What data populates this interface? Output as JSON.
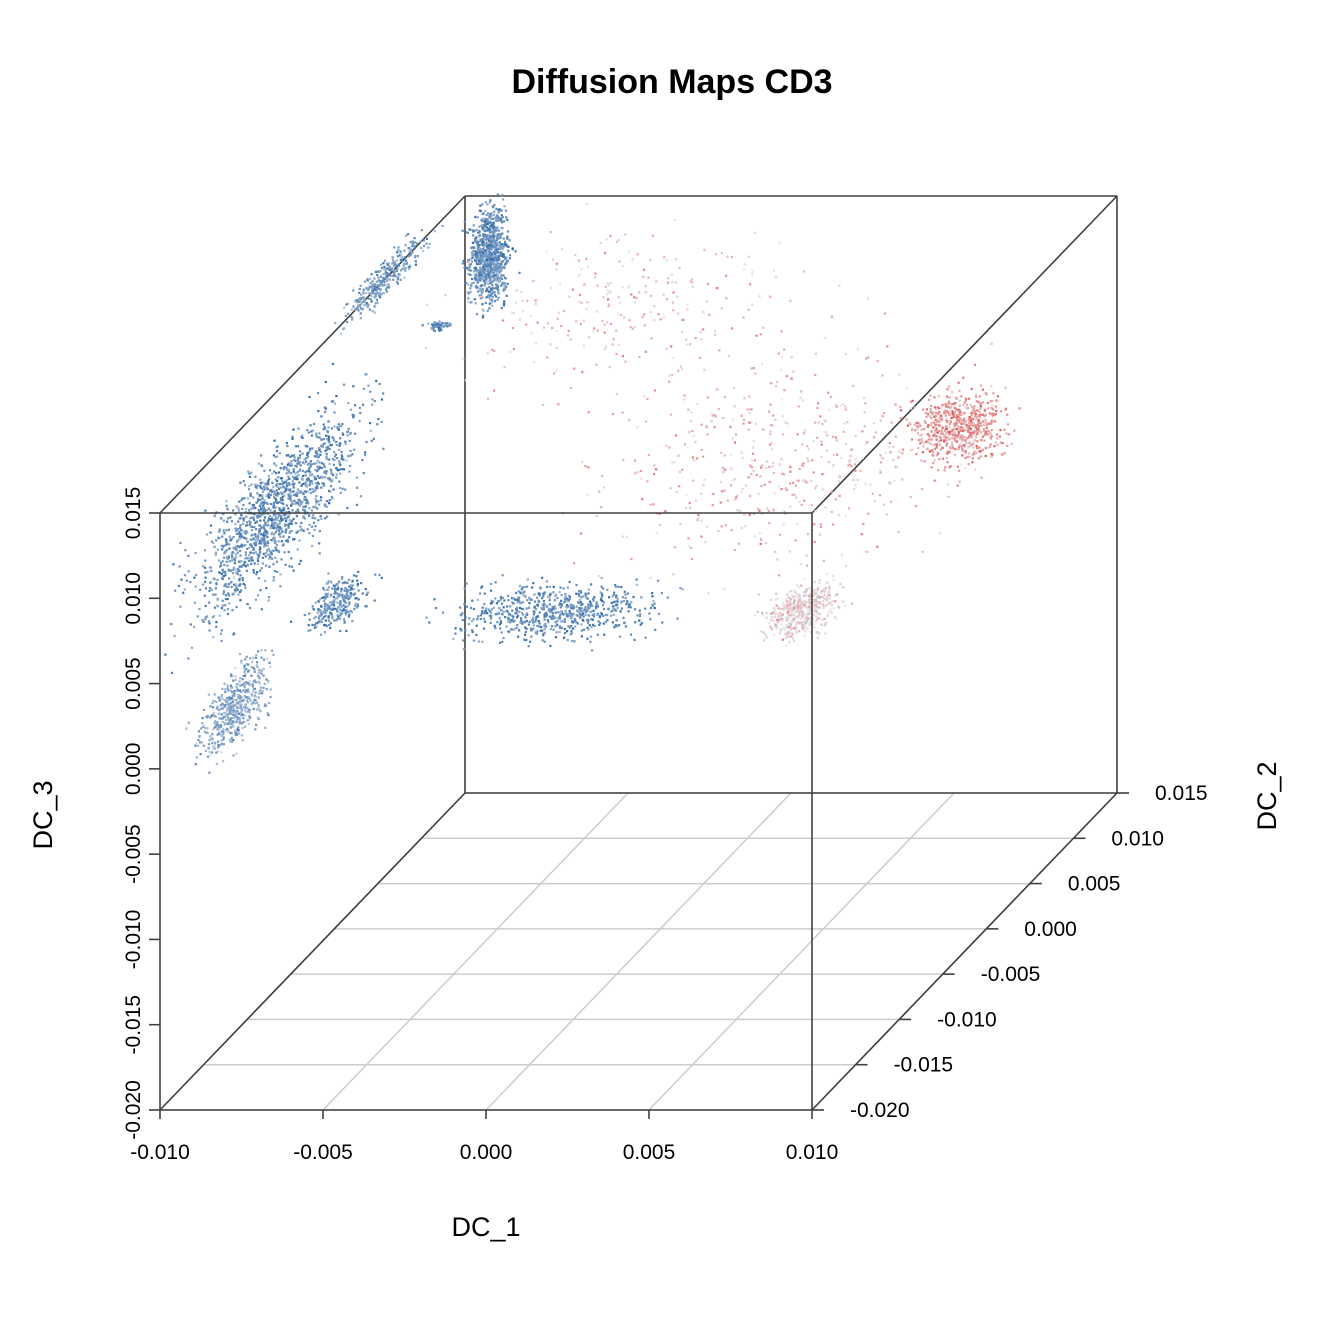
{
  "chart_data": {
    "type": "scatter",
    "title": "Diffusion Maps CD3",
    "xlabel": "DC_1",
    "ylabel": "DC_2",
    "zlabel": "DC_3",
    "x_ticks": [
      "-0.010",
      "-0.005",
      "0.000",
      "0.005",
      "0.010"
    ],
    "y_ticks": [
      "-0.020",
      "-0.015",
      "-0.010",
      "-0.005",
      "0.000",
      "0.005",
      "0.010",
      "0.015"
    ],
    "z_ticks": [
      "-0.020",
      "-0.015",
      "-0.010",
      "-0.005",
      "0.000",
      "0.005",
      "0.010",
      "0.015"
    ],
    "xlim": [
      -0.01,
      0.01
    ],
    "ylim": [
      -0.02,
      0.015
    ],
    "zlim": [
      -0.02,
      0.015
    ],
    "grid": true,
    "colors": {
      "low": "#2f6aa8",
      "mid": "#e8e8ec",
      "high": "#e0221f",
      "box": "#404040",
      "grid": "#cccccc"
    },
    "clusters": [
      {
        "name": "",
        "x": -0.009,
        "y": 0.014,
        "z": 0.012,
        "sx": 0.0004,
        "sy": 0.0012,
        "sz": 0.0022,
        "n": 900,
        "cd3": 0.15
      },
      {
        "name": "",
        "x": -0.0095,
        "y": 0.004,
        "z": 0.016,
        "sx": 0.0003,
        "sy": 0.004,
        "sz": 0.0006,
        "n": 300,
        "cd3": 0.2
      },
      {
        "name": "",
        "x": -0.01,
        "y": 0.012,
        "z": 0.009,
        "sx": 0.0003,
        "sy": 0.0004,
        "sz": 0.0002,
        "n": 60,
        "cd3": 0.15
      },
      {
        "name": "",
        "x": -0.009,
        "y": -0.01,
        "z": 0.01,
        "sx": 0.0004,
        "sy": 0.008,
        "sz": 0.003,
        "n": 1400,
        "cd3": 0.15
      },
      {
        "name": "",
        "x": -0.009,
        "y": -0.015,
        "z": 0.001,
        "sx": 0.0004,
        "sy": 0.003,
        "sz": 0.0018,
        "n": 500,
        "cd3": 0.25
      },
      {
        "name": "",
        "x": -0.007,
        "y": -0.011,
        "z": 0.005,
        "sx": 0.0006,
        "sy": 0.002,
        "sz": 0.0008,
        "n": 280,
        "cd3": 0.15
      },
      {
        "name": "",
        "x": 0.0,
        "y": -0.012,
        "z": 0.005,
        "sx": 0.0025,
        "sy": 0.002,
        "sz": 0.0008,
        "n": 700,
        "cd3": 0.15
      },
      {
        "name": "",
        "x": 0.007,
        "y": -0.01,
        "z": 0.004,
        "sx": 0.0008,
        "sy": 0.002,
        "sz": 0.0008,
        "n": 500,
        "cd3": 0.55
      },
      {
        "name": "",
        "x": 0.006,
        "y": 0.012,
        "z": 0.003,
        "sx": 0.0012,
        "sy": 0.0015,
        "sz": 0.0015,
        "n": 600,
        "cd3": 0.72
      },
      {
        "name": "",
        "x": 0.003,
        "y": 0.003,
        "z": 0.006,
        "sx": 0.0045,
        "sy": 0.007,
        "sz": 0.004,
        "n": 500,
        "cd3": 0.62
      },
      {
        "name": "",
        "x": -0.003,
        "y": 0.008,
        "z": 0.012,
        "sx": 0.004,
        "sy": 0.005,
        "sz": 0.003,
        "n": 260,
        "cd3": 0.6
      }
    ]
  }
}
